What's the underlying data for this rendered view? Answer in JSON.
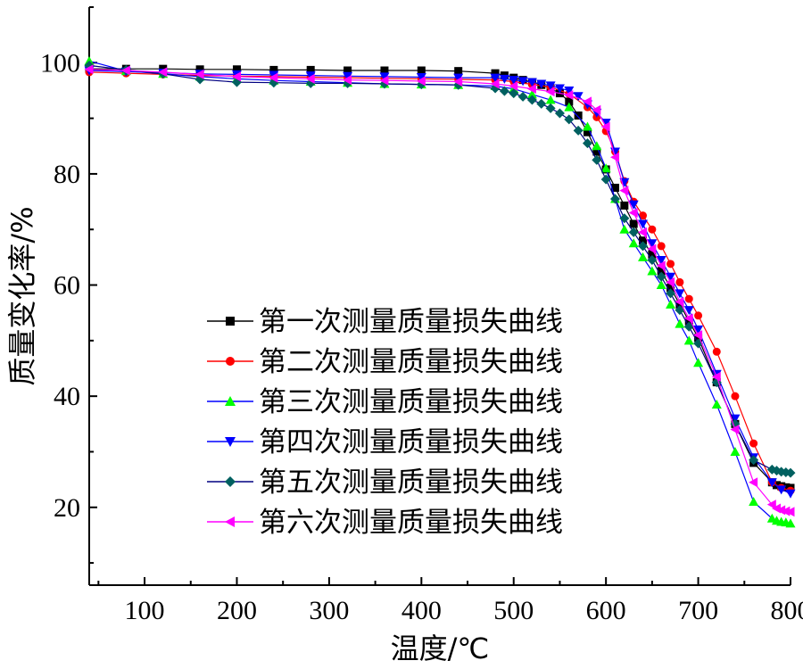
{
  "chart_data": {
    "type": "line",
    "xlabel": "温度/℃",
    "ylabel": "质量变化率/%",
    "xlim": [
      40,
      800
    ],
    "ylim": [
      6,
      110
    ],
    "x_ticks": [
      100,
      200,
      300,
      400,
      500,
      600,
      700,
      800
    ],
    "y_ticks": [
      20,
      40,
      60,
      80,
      100
    ],
    "grid": false,
    "legend_position": "center-left",
    "series": [
      {
        "name": "第一次测量质量损失曲线",
        "color": "#000000",
        "marker": "square",
        "x": [
          40,
          80,
          120,
          160,
          200,
          240,
          280,
          320,
          360,
          400,
          440,
          480,
          490,
          500,
          510,
          520,
          530,
          540,
          550,
          560,
          570,
          580,
          590,
          600,
          610,
          620,
          630,
          640,
          650,
          660,
          670,
          680,
          690,
          700,
          720,
          740,
          760,
          780,
          785,
          790,
          795,
          800
        ],
        "y": [
          98.9,
          98.9,
          98.9,
          98.8,
          98.8,
          98.7,
          98.7,
          98.6,
          98.6,
          98.6,
          98.5,
          98.1,
          97.7,
          97.3,
          96.9,
          96.5,
          96.0,
          95.4,
          94.5,
          93.0,
          90.5,
          87.5,
          84.0,
          80.8,
          77.5,
          74.3,
          71.0,
          68.0,
          65.5,
          62.5,
          59.5,
          56.5,
          53.5,
          50.5,
          42.5,
          35.0,
          28.0,
          24.5,
          24.0,
          23.8,
          23.6,
          23.5
        ]
      },
      {
        "name": "第二次测量质量损失曲线",
        "color": "#ff0000",
        "marker": "circle",
        "x": [
          40,
          80,
          120,
          160,
          200,
          240,
          280,
          320,
          360,
          400,
          440,
          480,
          500,
          520,
          540,
          560,
          580,
          590,
          600,
          610,
          620,
          630,
          640,
          650,
          660,
          670,
          680,
          690,
          700,
          720,
          740,
          760,
          780,
          790,
          800
        ],
        "y": [
          98.3,
          98.1,
          97.9,
          97.7,
          97.6,
          97.5,
          97.4,
          97.3,
          97.2,
          97.1,
          97.0,
          96.9,
          96.6,
          96.1,
          95.6,
          94.4,
          92.0,
          90.2,
          87.7,
          84.0,
          78.7,
          75.0,
          72.5,
          70.0,
          67.0,
          63.8,
          60.5,
          57.5,
          54.5,
          48.0,
          40.0,
          31.5,
          24.5,
          23.5,
          23.0
        ]
      },
      {
        "name": "第三次测量质量损失曲线",
        "color": "#00ff00",
        "marker": "triangle-up",
        "x": [
          40,
          80,
          120,
          160,
          200,
          240,
          280,
          320,
          360,
          400,
          440,
          480,
          500,
          520,
          540,
          560,
          580,
          590,
          600,
          610,
          620,
          630,
          640,
          650,
          660,
          670,
          680,
          690,
          700,
          720,
          740,
          760,
          780,
          785,
          790,
          795,
          800
        ],
        "y": [
          100.3,
          98.5,
          98.0,
          97.5,
          97.1,
          96.8,
          96.6,
          96.4,
          96.2,
          96.1,
          96.0,
          95.8,
          95.3,
          94.3,
          93.3,
          92.0,
          88.5,
          85.0,
          81.0,
          75.5,
          70.0,
          67.5,
          65.0,
          62.5,
          60.0,
          56.5,
          53.0,
          50.0,
          46.0,
          38.5,
          30.0,
          21.0,
          18.0,
          17.6,
          17.4,
          17.3,
          17.1
        ]
      },
      {
        "name": "第四次测量质量损失曲线",
        "color": "#0000ff",
        "marker": "triangle-down",
        "x": [
          40,
          80,
          120,
          160,
          200,
          240,
          280,
          320,
          360,
          400,
          440,
          480,
          490,
          500,
          510,
          520,
          530,
          540,
          550,
          560,
          570,
          580,
          590,
          600,
          610,
          620,
          630,
          640,
          650,
          660,
          670,
          680,
          690,
          700,
          720,
          740,
          760,
          780,
          790,
          800
        ],
        "y": [
          98.6,
          98.4,
          98.2,
          98.0,
          97.9,
          97.8,
          97.7,
          97.6,
          97.5,
          97.4,
          97.3,
          97.3,
          97.1,
          96.9,
          96.7,
          96.5,
          96.2,
          95.9,
          95.4,
          95.0,
          94.0,
          92.5,
          91.0,
          89.2,
          84.0,
          78.5,
          74.5,
          71.0,
          67.5,
          64.5,
          61.5,
          58.5,
          55.5,
          52.0,
          44.0,
          36.0,
          29.0,
          24.5,
          23.2,
          22.5
        ]
      },
      {
        "name": "第五次测量质量损失曲线",
        "color": "#006060",
        "marker": "diamond",
        "x": [
          40,
          80,
          120,
          160,
          200,
          240,
          280,
          320,
          360,
          400,
          440,
          480,
          490,
          500,
          510,
          520,
          530,
          540,
          550,
          560,
          570,
          580,
          590,
          600,
          610,
          620,
          630,
          640,
          650,
          660,
          670,
          680,
          690,
          700,
          720,
          740,
          760,
          780,
          785,
          790,
          795,
          800
        ],
        "y": [
          99.5,
          98.7,
          98.0,
          97.0,
          96.5,
          96.4,
          96.3,
          96.3,
          96.2,
          96.1,
          96.0,
          95.4,
          94.9,
          94.5,
          93.9,
          93.3,
          92.6,
          91.8,
          90.9,
          89.8,
          87.8,
          85.5,
          82.5,
          79.0,
          75.5,
          72.0,
          69.5,
          67.0,
          64.5,
          61.5,
          58.5,
          55.5,
          52.5,
          49.5,
          42.5,
          35.0,
          28.5,
          26.8,
          26.6,
          26.4,
          26.3,
          26.2
        ]
      },
      {
        "name": "第六次测量质量损失曲线",
        "color": "#ff00ff",
        "marker": "triangle-left",
        "x": [
          40,
          80,
          120,
          160,
          200,
          240,
          280,
          320,
          360,
          400,
          440,
          480,
          500,
          520,
          540,
          560,
          580,
          590,
          600,
          610,
          620,
          630,
          640,
          650,
          660,
          670,
          680,
          690,
          700,
          720,
          740,
          760,
          780,
          785,
          790,
          795,
          800
        ],
        "y": [
          98.8,
          98.6,
          98.3,
          97.9,
          97.5,
          97.3,
          97.1,
          96.9,
          96.8,
          96.7,
          96.6,
          96.2,
          95.8,
          95.3,
          94.8,
          94.2,
          93.0,
          91.5,
          88.5,
          83.0,
          77.0,
          73.0,
          69.5,
          66.5,
          63.5,
          60.5,
          57.0,
          54.0,
          51.0,
          43.5,
          34.0,
          24.5,
          20.5,
          19.8,
          19.5,
          19.3,
          19.2
        ]
      }
    ]
  }
}
